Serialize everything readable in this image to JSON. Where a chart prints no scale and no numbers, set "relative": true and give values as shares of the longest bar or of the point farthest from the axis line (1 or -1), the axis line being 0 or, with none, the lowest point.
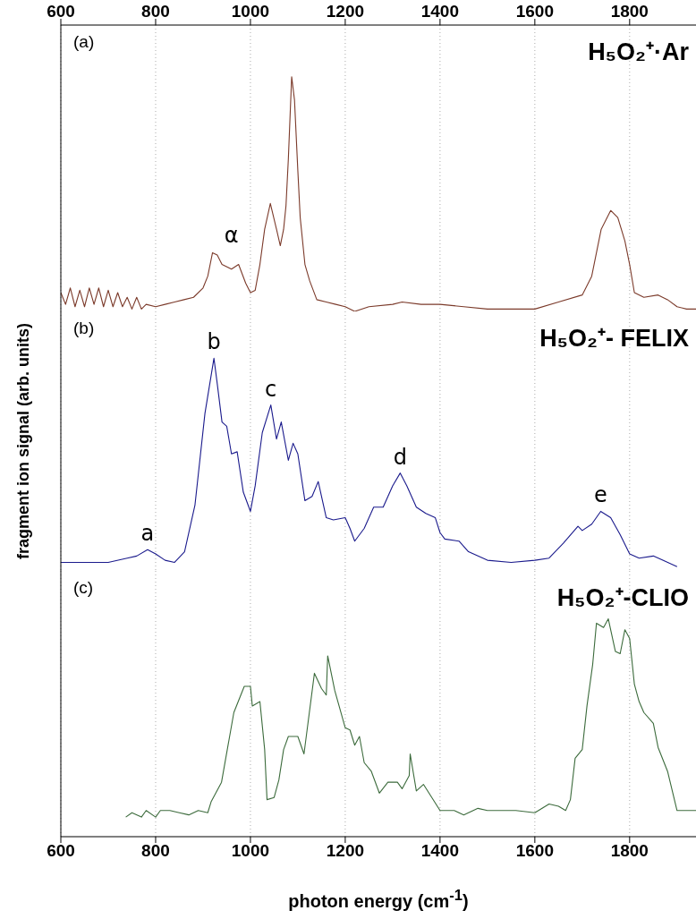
{
  "chart_data": [
    {
      "type": "line",
      "title": "H₅O₂⁺·Ar",
      "relative": true,
      "grid": "x",
      "tick_labels": false,
      "xlim": [
        600,
        1940
      ],
      "xticks": [
        600,
        800,
        1000,
        1200,
        1400,
        1600,
        1800
      ],
      "x2lim": [
        600,
        1940
      ],
      "x2ticks": [
        600,
        800,
        1000,
        1200,
        1400,
        1600,
        1800
      ],
      "annotations": [
        "(a)",
        {
          "text": "α",
          "x": 960,
          "y": 0.18
        }
      ],
      "series": [
        {
          "color": "#7b3a2a",
          "x": [
            600,
            610,
            620,
            630,
            640,
            650,
            660,
            670,
            680,
            690,
            700,
            710,
            720,
            730,
            740,
            750,
            760,
            770,
            780,
            800,
            820,
            840,
            860,
            880,
            900,
            910,
            920,
            930,
            940,
            960,
            975,
            990,
            1000,
            1010,
            1020,
            1030,
            1042,
            1055,
            1063,
            1070,
            1075,
            1080,
            1087,
            1093,
            1100,
            1105,
            1115,
            1125,
            1140,
            1160,
            1180,
            1200,
            1220,
            1250,
            1300,
            1320,
            1360,
            1400,
            1450,
            1500,
            1550,
            1600,
            1650,
            1700,
            1720,
            1740,
            1760,
            1775,
            1790,
            1800,
            1810,
            1830,
            1860,
            1880,
            1900,
            1920,
            1940
          ],
          "values": [
            0.08,
            0.03,
            0.1,
            0.02,
            0.09,
            0.02,
            0.1,
            0.03,
            0.1,
            0.02,
            0.09,
            0.02,
            0.08,
            0.02,
            0.06,
            0.01,
            0.06,
            0.01,
            0.03,
            0.02,
            0.03,
            0.04,
            0.05,
            0.06,
            0.1,
            0.15,
            0.25,
            0.24,
            0.2,
            0.18,
            0.2,
            0.12,
            0.08,
            0.09,
            0.2,
            0.35,
            0.46,
            0.35,
            0.28,
            0.35,
            0.45,
            0.65,
            1.0,
            0.9,
            0.6,
            0.4,
            0.2,
            0.13,
            0.05,
            0.04,
            0.03,
            0.02,
            0.0,
            0.02,
            0.03,
            0.04,
            0.03,
            0.03,
            0.02,
            0.01,
            0.01,
            0.01,
            0.04,
            0.07,
            0.15,
            0.35,
            0.43,
            0.4,
            0.3,
            0.2,
            0.08,
            0.06,
            0.07,
            0.05,
            0.02,
            0.01,
            0.01
          ]
        }
      ]
    },
    {
      "type": "line",
      "title": "H₅O₂⁺- FELIX",
      "ylabel": "fragment ion signal (arb. units)",
      "relative": true,
      "grid": "x",
      "tick_labels": false,
      "xlim": [
        600,
        1940
      ],
      "xticks": [
        600,
        800,
        1000,
        1200,
        1400,
        1600,
        1800
      ],
      "annotations": [
        "(b)",
        {
          "text": "a",
          "x": 783,
          "y": 0.1
        },
        {
          "text": "b",
          "x": 923,
          "y": 1
        },
        {
          "text": "c",
          "x": 1043,
          "y": 0.78
        },
        {
          "text": "d",
          "x": 1316,
          "y": 0.46
        },
        {
          "text": "e",
          "x": 1739,
          "y": 0.28
        }
      ],
      "series": [
        {
          "color": "#1a1a8c",
          "x": [
            600,
            650,
            700,
            740,
            760,
            783,
            800,
            820,
            840,
            861,
            883,
            904,
            923,
            930,
            940,
            950,
            960,
            972,
            985,
            1000,
            1010,
            1025,
            1043,
            1055,
            1065,
            1080,
            1090,
            1100,
            1115,
            1130,
            1143,
            1160,
            1175,
            1200,
            1210,
            1220,
            1240,
            1260,
            1280,
            1300,
            1316,
            1330,
            1350,
            1370,
            1390,
            1400,
            1410,
            1440,
            1460,
            1500,
            1550,
            1600,
            1630,
            1660,
            1691,
            1700,
            1720,
            1739,
            1760,
            1780,
            1800,
            1820,
            1850,
            1870,
            1900
          ],
          "values": [
            0.04,
            0.04,
            0.04,
            0.06,
            0.07,
            0.1,
            0.08,
            0.05,
            0.04,
            0.09,
            0.31,
            0.74,
            1.0,
            0.88,
            0.7,
            0.68,
            0.55,
            0.56,
            0.37,
            0.28,
            0.4,
            0.65,
            0.78,
            0.62,
            0.7,
            0.52,
            0.6,
            0.55,
            0.33,
            0.35,
            0.42,
            0.25,
            0.24,
            0.25,
            0.2,
            0.14,
            0.2,
            0.3,
            0.3,
            0.4,
            0.46,
            0.4,
            0.3,
            0.27,
            0.25,
            0.18,
            0.15,
            0.14,
            0.09,
            0.05,
            0.04,
            0.05,
            0.06,
            0.13,
            0.21,
            0.19,
            0.22,
            0.28,
            0.25,
            0.17,
            0.08,
            0.06,
            0.07,
            0.05,
            0.02
          ]
        }
      ]
    },
    {
      "type": "line",
      "title": "H₅O₂⁺-CLIO",
      "xlabel": "photon energy (cm$^{-1}$)",
      "relative": true,
      "grid": "x",
      "tick_labels": "x",
      "xlim": [
        600,
        1940
      ],
      "xticks": [
        600,
        800,
        1000,
        1200,
        1400,
        1600,
        1800
      ],
      "annotations": [
        "(c)"
      ],
      "series": [
        {
          "color": "#3c6b3c",
          "x": [
            737,
            750,
            770,
            780,
            800,
            810,
            830,
            850,
            870,
            890,
            910,
            917,
            939,
            952,
            965,
            987,
            1000,
            1004,
            1020,
            1030,
            1035,
            1050,
            1060,
            1070,
            1080,
            1100,
            1113,
            1135,
            1150,
            1160,
            1163,
            1178,
            1200,
            1210,
            1220,
            1230,
            1240,
            1255,
            1272,
            1290,
            1310,
            1320,
            1335,
            1337,
            1350,
            1365,
            1400,
            1430,
            1450,
            1480,
            1500,
            1520,
            1560,
            1600,
            1630,
            1650,
            1665,
            1675,
            1685,
            1700,
            1710,
            1722,
            1730,
            1745,
            1755,
            1770,
            1780,
            1790,
            1800,
            1810,
            1820,
            1830,
            1850,
            1860,
            1880,
            1900,
            1910,
            1930,
            1940
          ],
          "values": [
            0.09,
            0.11,
            0.09,
            0.12,
            0.09,
            0.12,
            0.12,
            0.11,
            0.1,
            0.12,
            0.11,
            0.16,
            0.25,
            0.41,
            0.57,
            0.69,
            0.69,
            0.6,
            0.62,
            0.4,
            0.17,
            0.18,
            0.26,
            0.4,
            0.46,
            0.46,
            0.38,
            0.75,
            0.68,
            0.65,
            0.83,
            0.67,
            0.5,
            0.49,
            0.42,
            0.46,
            0.34,
            0.3,
            0.2,
            0.25,
            0.25,
            0.22,
            0.28,
            0.38,
            0.21,
            0.24,
            0.12,
            0.12,
            0.1,
            0.13,
            0.12,
            0.12,
            0.12,
            0.11,
            0.15,
            0.14,
            0.12,
            0.17,
            0.36,
            0.4,
            0.6,
            0.79,
            0.98,
            0.96,
            1.0,
            0.85,
            0.84,
            0.95,
            0.91,
            0.7,
            0.62,
            0.57,
            0.52,
            0.41,
            0.3,
            0.12,
            0.12,
            0.12,
            0.12
          ]
        }
      ]
    }
  ]
}
